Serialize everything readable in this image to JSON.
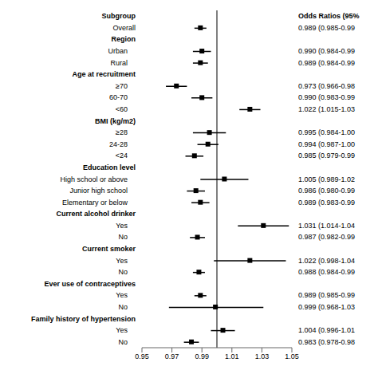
{
  "chart_data": {
    "type": "forest",
    "columns": [
      "Subgroup",
      "Odds Ratios (95%"
    ],
    "categories": [
      "Overall",
      "Region",
      "Urban",
      "Rural",
      "Age at recruitment",
      "≥70",
      "60-70",
      "<60",
      "BMI (kg/m2)",
      "≥28",
      "24-28",
      "<24",
      "Education level",
      "High school or above",
      "Junior high school",
      "Elementary or below",
      "Current alcohol drinker",
      "Yes",
      "No",
      "Current smoker",
      "Yes",
      "No",
      "Ever use of contraceptives",
      "Yes",
      "No",
      "Family history of hypertension",
      "Yes",
      "No"
    ],
    "values": [
      0.989,
      null,
      0.99,
      0.989,
      null,
      0.973,
      0.99,
      1.022,
      null,
      0.995,
      0.994,
      0.985,
      null,
      1.005,
      0.986,
      0.989,
      null,
      1.031,
      0.987,
      null,
      1.022,
      0.988,
      null,
      0.989,
      0.999,
      null,
      1.004,
      0.983
    ],
    "ci_low": [
      0.985,
      null,
      0.984,
      0.984,
      null,
      0.966,
      0.983,
      1.015,
      null,
      0.984,
      0.987,
      0.979,
      null,
      0.989,
      0.98,
      0.983,
      null,
      1.014,
      0.982,
      null,
      0.998,
      0.984,
      null,
      0.985,
      0.968,
      null,
      0.996,
      0.978
    ],
    "ci_high": [
      0.993,
      null,
      0.996,
      0.994,
      null,
      0.98,
      0.997,
      1.029,
      null,
      1.006,
      1.001,
      0.991,
      null,
      1.021,
      0.992,
      0.995,
      null,
      1.048,
      0.992,
      null,
      1.046,
      0.992,
      null,
      0.993,
      1.031,
      null,
      1.012,
      0.988
    ],
    "value_labels": [
      "0.989 (0.985-0.99",
      null,
      "0.990 (0.984-0.99",
      "0.989 (0.984-0.99",
      null,
      "0.973 (0.966-0.98",
      "0.990 (0.983-0.99",
      "1.022 (1.015-1.03",
      null,
      "0.995 (0.984-1.00",
      "0.994 (0.987-1.00",
      "0.985 (0.979-0.99",
      null,
      "1.005 (0.989-1.02",
      "0.986 (0.980-0.99",
      "0.989 (0.983-0.99",
      null,
      "1.031 (1.014-1.04",
      "0.987 (0.982-0.99",
      null,
      "1.022 (0.998-1.04",
      "0.988 (0.984-0.99",
      null,
      "0.989 (0.985-0.99",
      "0.999 (0.968-1.03",
      null,
      "1.004 (0.996-1.01",
      "0.983 (0.978-0.98"
    ],
    "xlim": [
      0.95,
      1.05
    ],
    "xticks": [
      0.95,
      0.97,
      0.99,
      1.01,
      1.03,
      1.05
    ],
    "reference_line": 1.0,
    "color": "black"
  }
}
